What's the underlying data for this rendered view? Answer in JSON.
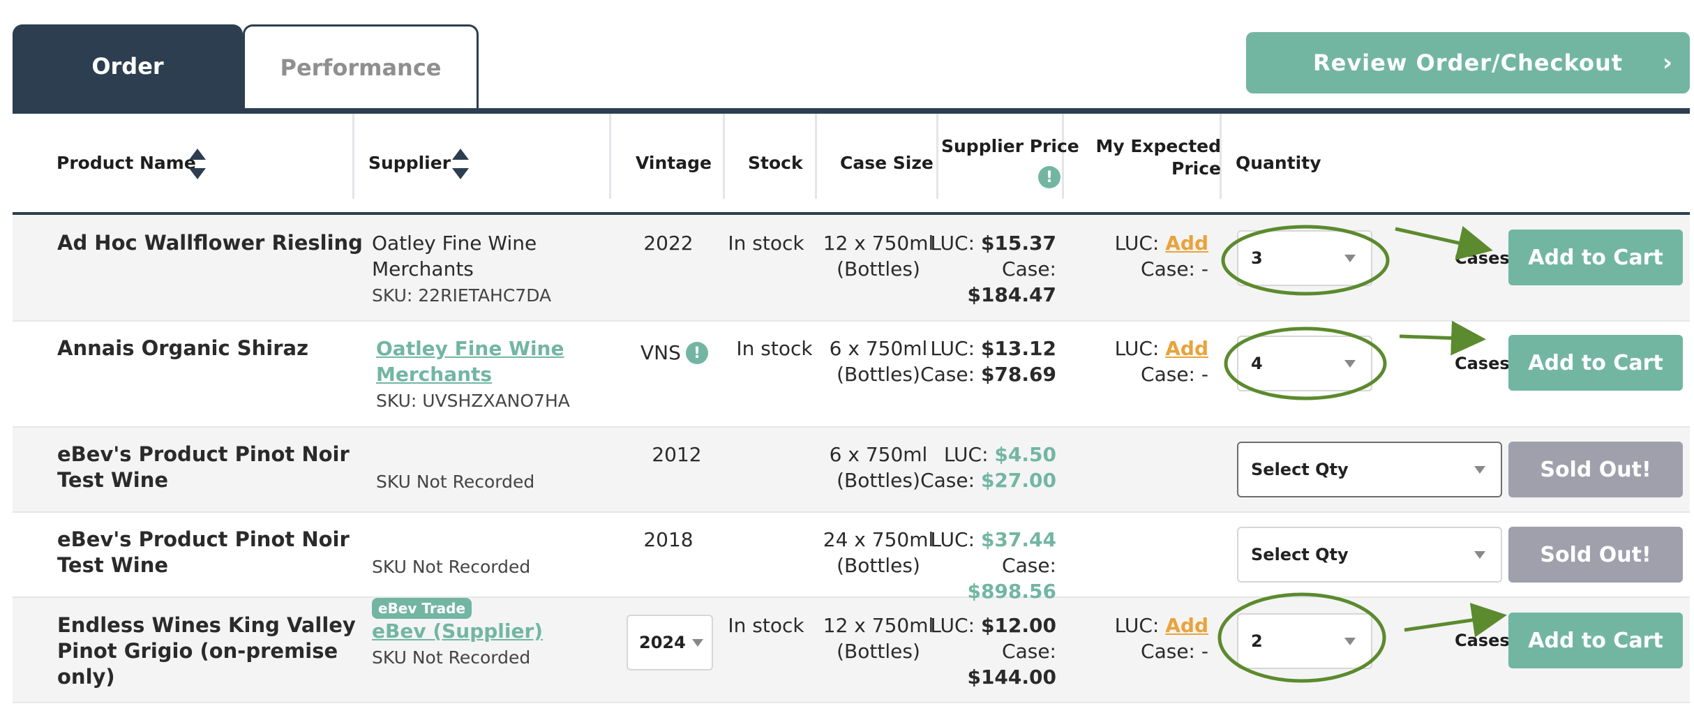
{
  "tabs": [
    {
      "label": "Order",
      "active": true
    },
    {
      "label": "Performance",
      "active": false
    }
  ],
  "review_button": {
    "label": "Review Order/Checkout",
    "chevron": "›"
  },
  "columns": {
    "product_name": "Product Name",
    "supplier": "Supplier",
    "vintage": "Vintage",
    "stock": "Stock",
    "case_size": "Case Size",
    "supplier_price": "Supplier Price",
    "expected_price_line1": "My Expected",
    "expected_price_line2": "Price",
    "quantity": "Quantity"
  },
  "info_glyph": "!",
  "rows": [
    {
      "name_lines": [
        "Ad Hoc Wallflower Riesling"
      ],
      "supplier_lines": [
        "Oatley Fine Wine",
        "Merchants"
      ],
      "sku": "SKU: 22RIETAHC7DA",
      "vintage": "2022",
      "stock": "In stock",
      "case_size_lines": [
        "12 x 750ml",
        "(Bottles)"
      ],
      "luc_label": "LUC: ",
      "luc_value": "$15.37",
      "case_label": "Case: ",
      "case_value": "$184.47",
      "expected_luc_label": "LUC: ",
      "expected_luc_link": "Add",
      "expected_case": "Case: -",
      "quantity": "3",
      "quantity_unit": "Cases",
      "action": "Add to Cart"
    },
    {
      "name_lines": [
        "Annais Organic Shiraz"
      ],
      "supplier_lines": [
        "Oatley Fine Wine",
        "Merchants"
      ],
      "sku": "SKU: UVSHZXANO7HA",
      "vintage": "VNS",
      "stock": "In stock",
      "case_size_lines": [
        "6 x 750ml",
        "(Bottles)"
      ],
      "luc_label": "LUC: ",
      "luc_value": "$13.12",
      "case_label": "Case: ",
      "case_value": "$78.69",
      "expected_luc_label": "LUC: ",
      "expected_luc_link": "Add",
      "expected_case": "Case: -",
      "quantity": "4",
      "quantity_unit": "Cases",
      "action": "Add to Cart"
    },
    {
      "name_lines": [
        "eBev's Product Pinot Noir",
        "Test Wine"
      ],
      "sku": "SKU Not Recorded",
      "vintage": "2012",
      "case_size_lines": [
        "6 x 750ml",
        "(Bottles)"
      ],
      "luc_label": "LUC: ",
      "luc_value": "$4.50",
      "case_label": "Case: ",
      "case_value": "$27.00",
      "quantity": "Select Qty",
      "action": "Sold Out!"
    },
    {
      "name_lines": [
        "eBev's Product Pinot Noir",
        "Test Wine"
      ],
      "sku": "SKU Not Recorded",
      "vintage": "2018",
      "case_size_lines": [
        "24 x 750ml",
        "(Bottles)"
      ],
      "luc_label": "LUC: ",
      "luc_value": "$37.44",
      "case_label": "Case: ",
      "case_value": "$898.56",
      "quantity": "Select Qty",
      "action": "Sold Out!"
    },
    {
      "name_lines": [
        "Endless Wines King Valley",
        "Pinot Grigio (on-premise",
        "only)"
      ],
      "badge": "eBev Trade",
      "supplier_lines": [
        "eBev (Supplier)"
      ],
      "sku": "SKU Not Recorded",
      "vintage": "2024",
      "stock": "In stock",
      "case_size_lines": [
        "12 x 750ml",
        "(Bottles)"
      ],
      "luc_label": "LUC: ",
      "luc_value": "$12.00",
      "case_label": "Case: ",
      "case_value": "$144.00",
      "expected_luc_label": "LUC: ",
      "expected_luc_link": "Add",
      "expected_case": "Case: -",
      "quantity": "2",
      "quantity_unit": "Cases",
      "action": "Add to Cart"
    }
  ],
  "colors": {
    "navy": "#2c3e50",
    "teal": "#72b6a2",
    "annotation_green": "#5c8a2e",
    "link_orange": "#e8a33b",
    "sold_out_gray": "#9fa0ac"
  }
}
